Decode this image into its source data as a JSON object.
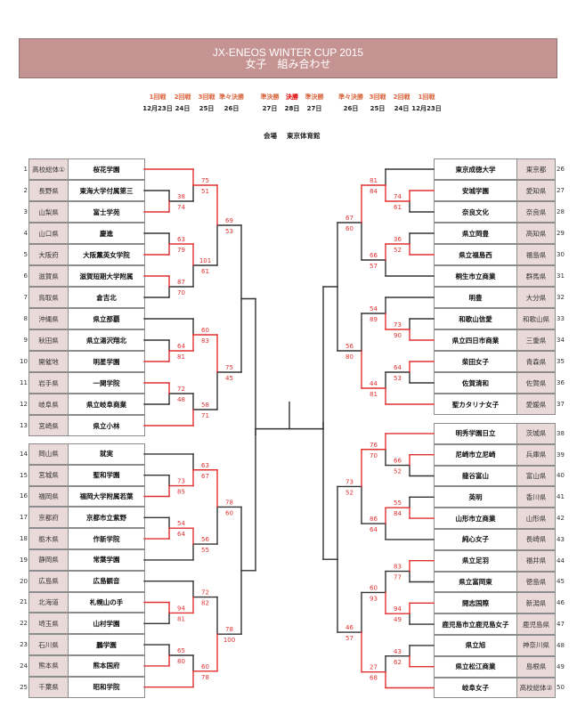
{
  "header": {
    "title": "JX-ENEOS WINTER CUP 2015",
    "subtitle": "女子　組み合わせ",
    "color": "#c59391"
  },
  "rounds": [
    {
      "label": "1回戦",
      "date": "12月23日"
    },
    {
      "label": "2回戦",
      "date": "24日"
    },
    {
      "label": "3回戦",
      "date": "25日"
    },
    {
      "label": "準々決勝",
      "date": "26日"
    },
    {
      "label": "準決勝",
      "date": "27日"
    },
    {
      "label": "決勝",
      "date": "28日"
    },
    {
      "label": "準決勝",
      "date": "27日"
    },
    {
      "label": "準々決勝",
      "date": "26日"
    },
    {
      "label": "3回戦",
      "date": "25日"
    },
    {
      "label": "2回戦",
      "date": "24日"
    },
    {
      "label": "1回戦",
      "date": "12月23日"
    }
  ],
  "venue": {
    "label": "会場",
    "name": "東京体育館"
  },
  "colors": {
    "winner_line": "#e03030",
    "line": "#333333",
    "prefecture_cell": "#ead9d9",
    "round_label": "#d9663f",
    "final_label": "#e00000"
  },
  "teams": [
    {
      "no": "1",
      "pref": "高校総体①",
      "school": "桜花学園"
    },
    {
      "no": "2",
      "pref": "長野県",
      "school": "東海大学付属第三"
    },
    {
      "no": "3",
      "pref": "山梨県",
      "school": "富士学苑"
    },
    {
      "no": "4",
      "pref": "山口県",
      "school": "慶進"
    },
    {
      "no": "5",
      "pref": "大阪府",
      "school": "大阪薫英女学院"
    },
    {
      "no": "6",
      "pref": "滋賀県",
      "school": "滋賀短期大学附属"
    },
    {
      "no": "7",
      "pref": "鳥取県",
      "school": "倉吉北"
    },
    {
      "no": "8",
      "pref": "沖縄県",
      "school": "県立那覇"
    },
    {
      "no": "9",
      "pref": "秋田県",
      "school": "県立湯沢翔北"
    },
    {
      "no": "10",
      "pref": "開催地",
      "school": "明星学園"
    },
    {
      "no": "11",
      "pref": "岩手県",
      "school": "一関学院"
    },
    {
      "no": "12",
      "pref": "岐阜県",
      "school": "県立岐阜商業"
    },
    {
      "no": "13",
      "pref": "宮崎県",
      "school": "県立小林"
    },
    {
      "no": "14",
      "pref": "岡山県",
      "school": "就実"
    },
    {
      "no": "15",
      "pref": "宮城県",
      "school": "聖和学園"
    },
    {
      "no": "16",
      "pref": "福岡県",
      "school": "福岡大学附属若葉"
    },
    {
      "no": "17",
      "pref": "京都府",
      "school": "京都市立紫野"
    },
    {
      "no": "18",
      "pref": "栃木県",
      "school": "作新学院"
    },
    {
      "no": "19",
      "pref": "静岡県",
      "school": "常葉学園"
    },
    {
      "no": "20",
      "pref": "広島県",
      "school": "広島観音"
    },
    {
      "no": "21",
      "pref": "北海道",
      "school": "札幌山の手"
    },
    {
      "no": "22",
      "pref": "埼玉県",
      "school": "山村学園"
    },
    {
      "no": "23",
      "pref": "石川県",
      "school": "鵬学園"
    },
    {
      "no": "24",
      "pref": "熊本県",
      "school": "熊本国府"
    },
    {
      "no": "25",
      "pref": "千葉県",
      "school": "昭和学院"
    },
    {
      "no": "26",
      "pref": "東京都",
      "school": "東京成徳大学"
    },
    {
      "no": "27",
      "pref": "愛知県",
      "school": "安城学園"
    },
    {
      "no": "28",
      "pref": "奈良県",
      "school": "奈良文化"
    },
    {
      "no": "29",
      "pref": "高知県",
      "school": "県立岡豊"
    },
    {
      "no": "30",
      "pref": "福島県",
      "school": "県立福島西"
    },
    {
      "no": "31",
      "pref": "群馬県",
      "school": "桐生市立商業"
    },
    {
      "no": "32",
      "pref": "大分県",
      "school": "明豊"
    },
    {
      "no": "33",
      "pref": "和歌山県",
      "school": "和歌山信愛"
    },
    {
      "no": "34",
      "pref": "三重県",
      "school": "県立四日市商業"
    },
    {
      "no": "35",
      "pref": "青森県",
      "school": "柴田女子"
    },
    {
      "no": "36",
      "pref": "佐賀県",
      "school": "佐賀清和"
    },
    {
      "no": "37",
      "pref": "愛媛県",
      "school": "聖カタリナ女子"
    },
    {
      "no": "38",
      "pref": "茨城県",
      "school": "明秀学園日立"
    },
    {
      "no": "39",
      "pref": "兵庫県",
      "school": "尼崎市立尼崎"
    },
    {
      "no": "40",
      "pref": "富山県",
      "school": "龍谷富山"
    },
    {
      "no": "41",
      "pref": "香川県",
      "school": "英明"
    },
    {
      "no": "42",
      "pref": "山形県",
      "school": "山形市立商業"
    },
    {
      "no": "43",
      "pref": "長崎県",
      "school": "純心女子"
    },
    {
      "no": "44",
      "pref": "福井県",
      "school": "県立足羽"
    },
    {
      "no": "45",
      "pref": "徳島県",
      "school": "県立富岡東"
    },
    {
      "no": "46",
      "pref": "新潟県",
      "school": "開志国際"
    },
    {
      "no": "47",
      "pref": "鹿児島県",
      "school": "鹿児島市立鹿児島女子"
    },
    {
      "no": "48",
      "pref": "神奈川県",
      "school": "県立旭"
    },
    {
      "no": "49",
      "pref": "島根県",
      "school": "県立松江商業"
    },
    {
      "no": "50",
      "pref": "高校総体②",
      "school": "岐阜女子"
    }
  ],
  "bracket": {
    "left": {
      "m": [
        {
          "m": [
            {
              "s": [
                69,
                53
              ],
              "m": [
                {
                  "s": [
                    75,
                    51
                  ],
                  "m": [
                    {
                      "t": 1
                    },
                    {
                      "s": [
                        38,
                        74
                      ],
                      "m": [
                        {
                          "t": 2
                        },
                        {
                          "t": 3
                        }
                      ]
                    }
                  ]
                },
                {
                  "s": [
                    101,
                    61
                  ],
                  "m": [
                    {
                      "s": [
                        63,
                        79
                      ],
                      "m": [
                        {
                          "t": 4
                        },
                        {
                          "t": 5
                        }
                      ]
                    },
                    {
                      "s": [
                        87,
                        70
                      ],
                      "m": [
                        {
                          "t": 6
                        },
                        {
                          "t": 7
                        }
                      ]
                    }
                  ]
                }
              ]
            },
            {
              "s": [
                75,
                45
              ],
              "m": [
                {
                  "s": [
                    60,
                    83
                  ],
                  "m": [
                    {
                      "t": 8
                    },
                    {
                      "s": [
                        64,
                        81
                      ],
                      "m": [
                        {
                          "t": 9
                        },
                        {
                          "t": 10
                        }
                      ]
                    }
                  ]
                },
                {
                  "s": [
                    58,
                    71
                  ],
                  "m": [
                    {
                      "s": [
                        72,
                        48
                      ],
                      "m": [
                        {
                          "t": 11
                        },
                        {
                          "t": 12
                        }
                      ]
                    },
                    {
                      "t": 13
                    }
                  ]
                }
              ]
            }
          ]
        },
        {
          "m": [
            {
              "s": [
                78,
                60
              ],
              "m": [
                {
                  "s": [
                    63,
                    67
                  ],
                  "m": [
                    {
                      "t": 14
                    },
                    {
                      "s": [
                        73,
                        85
                      ],
                      "m": [
                        {
                          "t": 15
                        },
                        {
                          "t": 16
                        }
                      ]
                    }
                  ]
                },
                {
                  "s": [
                    56,
                    55
                  ],
                  "m": [
                    {
                      "s": [
                        54,
                        64
                      ],
                      "m": [
                        {
                          "t": 17
                        },
                        {
                          "t": 18
                        }
                      ]
                    },
                    {
                      "t": 19
                    }
                  ]
                }
              ]
            },
            {
              "s": [
                78,
                100
              ],
              "m": [
                {
                  "s": [
                    72,
                    82
                  ],
                  "m": [
                    {
                      "t": 20
                    },
                    {
                      "s": [
                        94,
                        81
                      ],
                      "m": [
                        {
                          "t": 21
                        },
                        {
                          "t": 22
                        }
                      ]
                    }
                  ]
                },
                {
                  "s": [
                    60,
                    78
                  ],
                  "m": [
                    {
                      "s": [
                        65,
                        80
                      ],
                      "m": [
                        {
                          "t": 23
                        },
                        {
                          "t": 24
                        }
                      ]
                    },
                    {
                      "t": 25
                    }
                  ]
                }
              ]
            }
          ]
        }
      ]
    },
    "right": {
      "m": [
        {
          "m": [
            {
              "s": [
                67,
                60
              ],
              "m": [
                {
                  "s": [
                    81,
                    84
                  ],
                  "m": [
                    {
                      "t": 26
                    },
                    {
                      "s": [
                        74,
                        61
                      ],
                      "m": [
                        {
                          "t": 27
                        },
                        {
                          "t": 28
                        }
                      ]
                    }
                  ]
                },
                {
                  "s": [
                    66,
                    57
                  ],
                  "m": [
                    {
                      "s": [
                        36,
                        52
                      ],
                      "m": [
                        {
                          "t": 29
                        },
                        {
                          "t": 30
                        }
                      ]
                    },
                    {
                      "t": 31
                    }
                  ]
                }
              ]
            },
            {
              "s": [
                56,
                80
              ],
              "m": [
                {
                  "s": [
                    54,
                    89
                  ],
                  "m": [
                    {
                      "t": 32
                    },
                    {
                      "s": [
                        73,
                        90
                      ],
                      "m": [
                        {
                          "t": 33
                        },
                        {
                          "t": 34
                        }
                      ]
                    }
                  ]
                },
                {
                  "s": [
                    44,
                    81
                  ],
                  "m": [
                    {
                      "s": [
                        64,
                        53
                      ],
                      "m": [
                        {
                          "t": 35
                        },
                        {
                          "t": 36
                        }
                      ]
                    },
                    {
                      "t": 37
                    }
                  ]
                }
              ]
            }
          ]
        },
        {
          "m": [
            {
              "s": [
                73,
                52
              ],
              "m": [
                {
                  "s": [
                    76,
                    70
                  ],
                  "m": [
                    {
                      "t": 38
                    },
                    {
                      "s": [
                        66,
                        52
                      ],
                      "m": [
                        {
                          "t": 39
                        },
                        {
                          "t": 40
                        }
                      ]
                    }
                  ]
                },
                {
                  "s": [
                    86,
                    64
                  ],
                  "m": [
                    {
                      "s": [
                        55,
                        84
                      ],
                      "m": [
                        {
                          "t": 41
                        },
                        {
                          "t": 42
                        }
                      ]
                    },
                    {
                      "t": 43
                    }
                  ]
                }
              ]
            },
            {
              "s": [
                46,
                57
              ],
              "m": [
                {
                  "s": [
                    60,
                    93
                  ],
                  "m": [
                    {
                      "s": [
                        83,
                        77
                      ],
                      "m": [
                        {
                          "t": 44
                        },
                        {
                          "t": 45
                        }
                      ]
                    },
                    {
                      "s": [
                        94,
                        49
                      ],
                      "m": [
                        {
                          "t": 46
                        },
                        {
                          "t": 47
                        }
                      ]
                    }
                  ]
                },
                {
                  "s": [
                    27,
                    68
                  ],
                  "m": [
                    {
                      "s": [
                        43,
                        62
                      ],
                      "m": [
                        {
                          "t": 48
                        },
                        {
                          "t": 49
                        }
                      ]
                    },
                    {
                      "t": 50
                    }
                  ]
                }
              ]
            }
          ]
        }
      ]
    }
  }
}
